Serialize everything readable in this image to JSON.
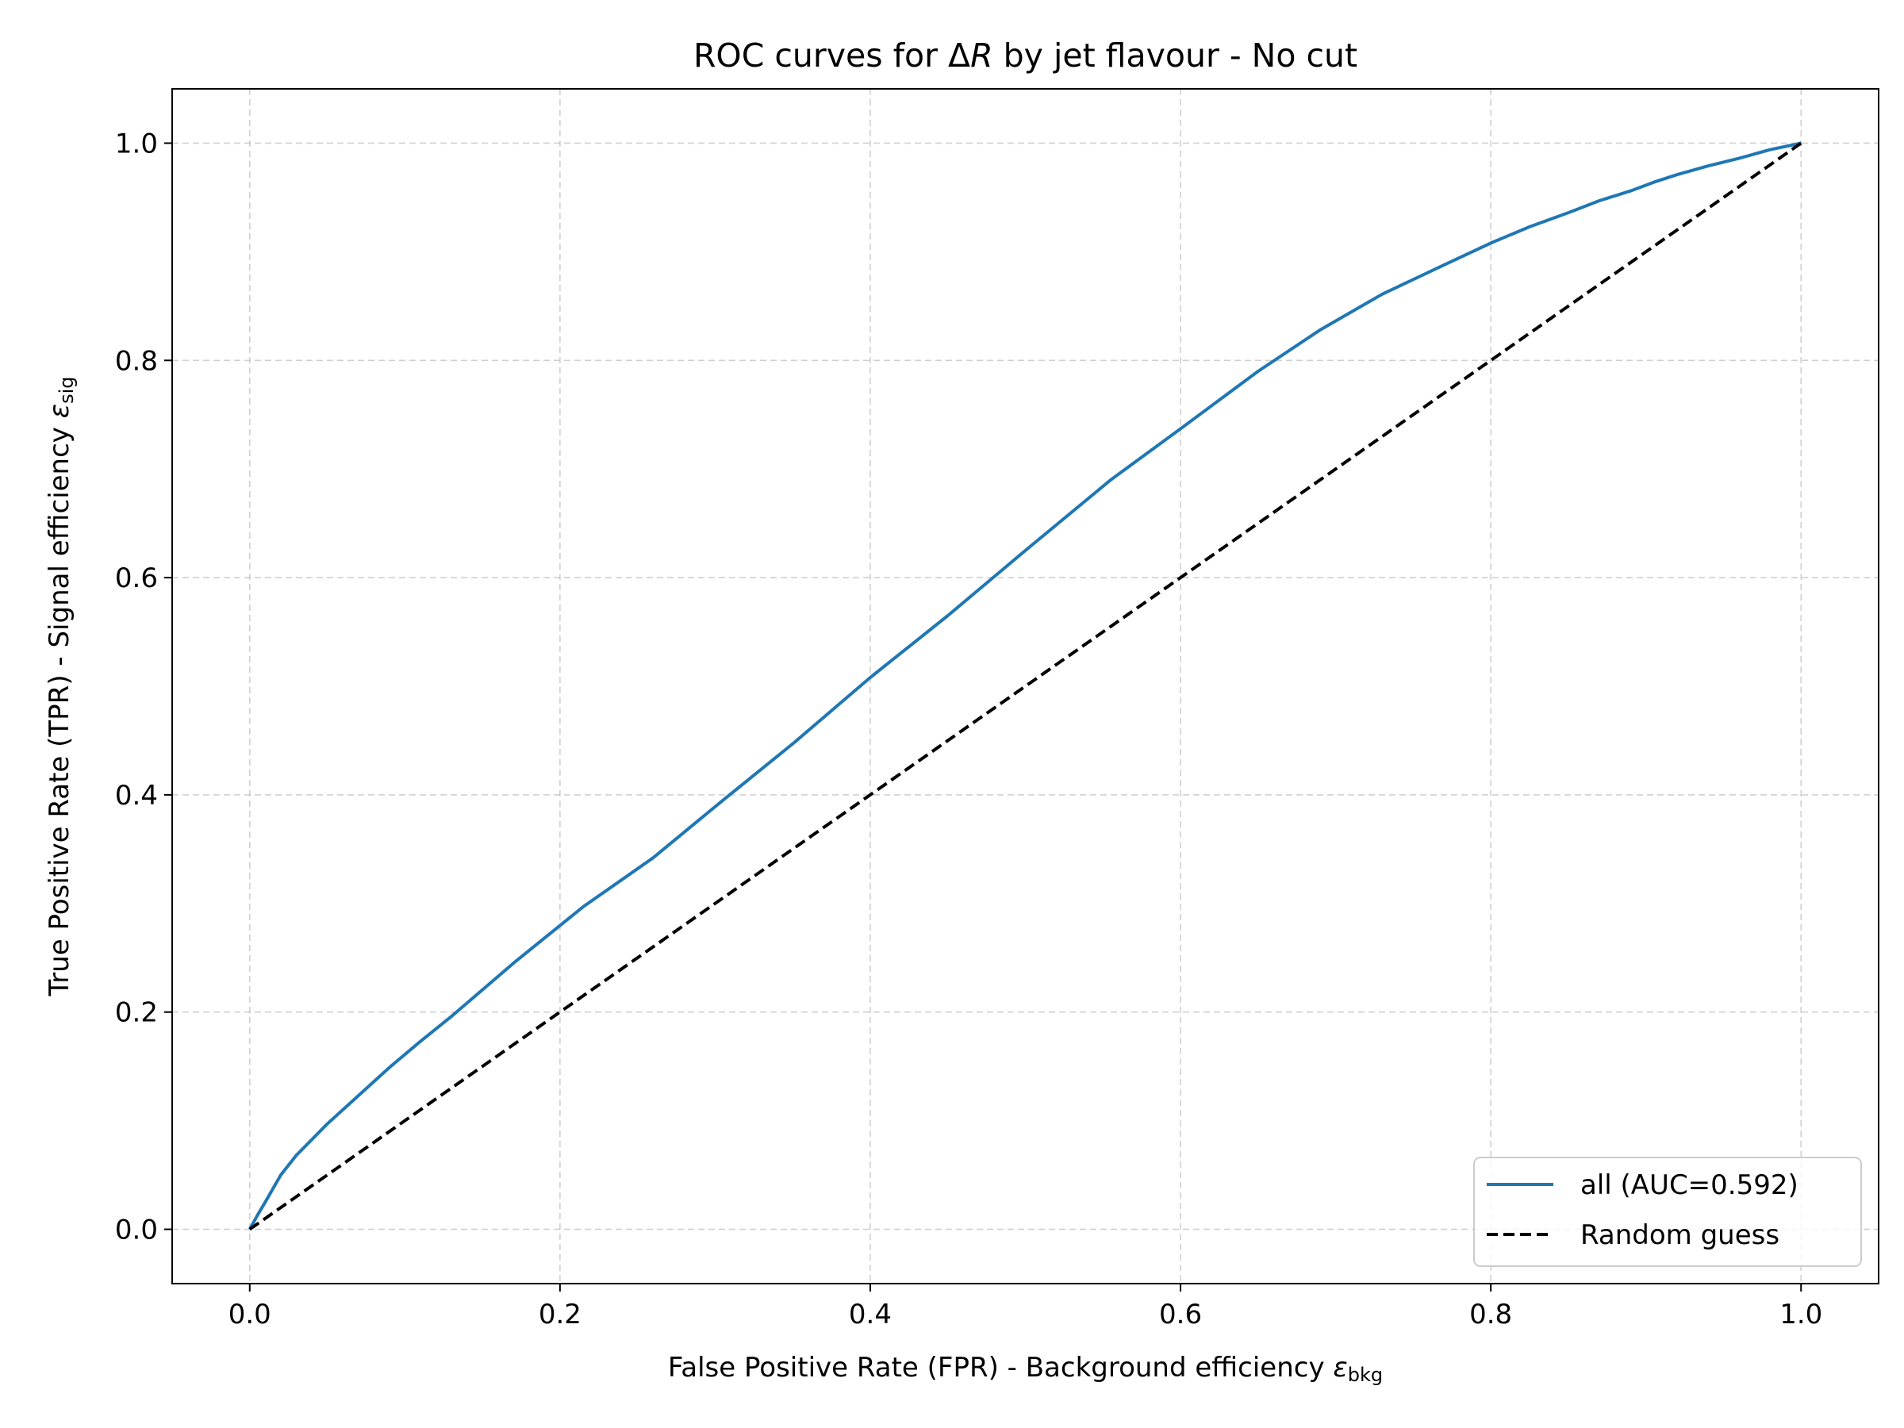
{
  "chart_data": {
    "type": "line",
    "title": {
      "prefix": "ROC curves for ",
      "delta": "Δ",
      "var": "R",
      "suffix": " by jet flavour - No cut"
    },
    "xlabel": {
      "text": "False Positive Rate (FPR) - Background efficiency ",
      "symbol": "ε",
      "sub": "bkg"
    },
    "ylabel": {
      "text": "True Positive Rate (TPR) - Signal efficiency ",
      "symbol": "ε",
      "sub": "sig"
    },
    "xlim": [
      -0.05,
      1.05
    ],
    "ylim": [
      -0.05,
      1.05
    ],
    "xticks": [
      "0.0",
      "0.2",
      "0.4",
      "0.6",
      "0.8",
      "1.0"
    ],
    "yticks": [
      "0.0",
      "0.2",
      "0.4",
      "0.6",
      "0.8",
      "1.0"
    ],
    "grid": true,
    "legend_position": "lower right",
    "series": [
      {
        "name": "all (AUC=0.592)",
        "color": "#1f77b4",
        "style": "solid",
        "x": [
          0.0,
          0.005,
          0.01,
          0.02,
          0.03,
          0.05,
          0.07,
          0.09,
          0.11,
          0.13,
          0.17,
          0.215,
          0.26,
          0.305,
          0.35,
          0.4,
          0.45,
          0.5,
          0.555,
          0.6,
          0.65,
          0.69,
          0.73,
          0.77,
          0.8,
          0.825,
          0.85,
          0.87,
          0.89,
          0.905,
          0.92,
          0.94,
          0.96,
          0.98,
          1.0
        ],
        "y": [
          0.0,
          0.013,
          0.025,
          0.05,
          0.068,
          0.097,
          0.123,
          0.149,
          0.173,
          0.196,
          0.245,
          0.297,
          0.342,
          0.395,
          0.447,
          0.508,
          0.565,
          0.625,
          0.69,
          0.737,
          0.79,
          0.828,
          0.861,
          0.888,
          0.908,
          0.923,
          0.936,
          0.947,
          0.956,
          0.964,
          0.971,
          0.979,
          0.986,
          0.994,
          1.0
        ]
      },
      {
        "name": "Random guess",
        "color": "#000000",
        "style": "dashed",
        "x": [
          0.0,
          1.0
        ],
        "y": [
          0.0,
          1.0
        ]
      }
    ]
  }
}
